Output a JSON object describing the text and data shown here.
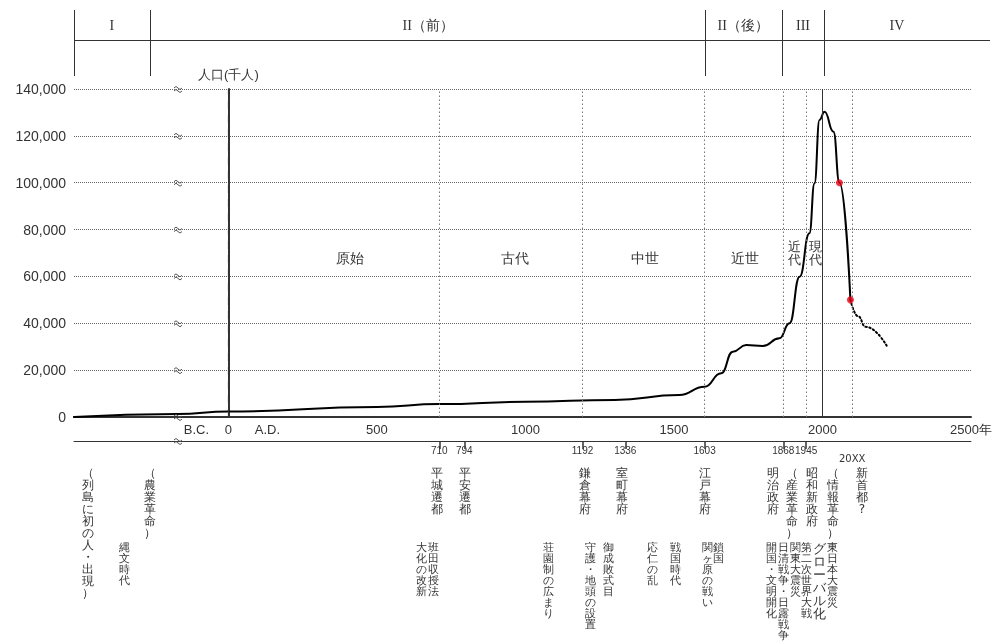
{
  "chart_data": {
    "type": "line",
    "ylabel": "人口(千人)",
    "xlim": [
      -520,
      2500
    ],
    "ylim": [
      0,
      140000
    ],
    "xticks": [
      {
        "value": -108,
        "label": "B.C."
      },
      0,
      {
        "value": 131,
        "label": "A.D."
      },
      500,
      1000,
      1500,
      2000,
      {
        "value": 2500,
        "label": "2500年"
      }
    ],
    "yticks": [
      0,
      {
        "value": 20000,
        "label": "20,000"
      },
      {
        "value": 40000,
        "label": "40,000"
      },
      {
        "value": 60000,
        "label": "60,000"
      },
      {
        "value": 80000,
        "label": "80,000"
      },
      {
        "value": 100000,
        "label": "100,000"
      },
      {
        "value": 120000,
        "label": "120,000"
      },
      {
        "value": 140000,
        "label": "140,000"
      }
    ],
    "x2lim": [
      -520,
      2500
    ],
    "x2ticks": [
      710,
      794,
      1192,
      1336,
      1603,
      1868,
      1945
    ],
    "grid": "y",
    "series": [
      {
        "color": "#000000",
        "marker": "none",
        "line_style": "solid",
        "x": [
          -520,
          -172,
          0,
          500,
          710,
          1000,
          1300,
          1518,
          1603,
          1659,
          1698,
          1743,
          1799,
          1855,
          1889,
          1923,
          1956,
          1973,
          1990,
          2007,
          2037,
          2057,
          2094
        ],
        "values": [
          0,
          1300,
          2300,
          4300,
          5500,
          6500,
          7300,
          9400,
          12900,
          18700,
          27900,
          30700,
          30300,
          33600,
          40000,
          59900,
          78400,
          99700,
          126800,
          130300,
          121800,
          100000,
          50000
        ]
      },
      {
        "color": "#000000",
        "marker": "none",
        "line_style": "dotted",
        "x": [
          2094,
          2120,
          2145,
          2218
        ],
        "values": [
          50000,
          43000,
          38500,
          30000
        ]
      },
      {
        "type": "scatter",
        "color": "#e60012",
        "marker": "circle",
        "x": [
          2057,
          2094
        ],
        "values": [
          100000,
          50000
        ]
      }
    ],
    "ref_lines": [
      {
        "axis": "x",
        "value": 0,
        "line_style": "dashed"
      },
      {
        "axis": "x",
        "value": 710,
        "line_style": "dotted"
      },
      {
        "axis": "x",
        "value": 1192,
        "line_style": "dotted"
      },
      {
        "axis": "x",
        "value": 1603,
        "line_style": "dotted"
      },
      {
        "axis": "x",
        "value": 1868,
        "line_style": "dotted"
      },
      {
        "axis": "x",
        "value": 1945,
        "line_style": "dotted"
      },
      {
        "axis": "x",
        "value": 2000,
        "line_style": "solid"
      },
      {
        "axis": "x",
        "value": 2100,
        "line_style": "dotted"
      }
    ],
    "annotations": [
      "I",
      "II（前）",
      "II（後）",
      "III",
      "IV",
      "原始",
      "古代",
      "中世",
      "近世",
      "近代",
      "現代",
      "20XX",
      "（列島に初の人・出現）",
      "（農業革命）",
      "平城遷都",
      "平安遷都",
      "鎌倉幕府",
      "室町幕府",
      "江戸幕府",
      "明治政府",
      "（産業革命）",
      "昭和新政府",
      "（情報革命）",
      "新首都?",
      "縄文時代",
      "大化の改新",
      "班田収授法",
      "荘園制の広まり",
      "守護・地頭の設置",
      "御成敗式目",
      "応仁の乱",
      "戦国時代",
      "関ヶ原の戦い",
      "鎖国",
      "開国・文明開化",
      "日清戦争・日露戦争",
      "関東大震災",
      "第二次世界大戦",
      "グローバル化",
      "東日本大震災"
    ]
  }
}
